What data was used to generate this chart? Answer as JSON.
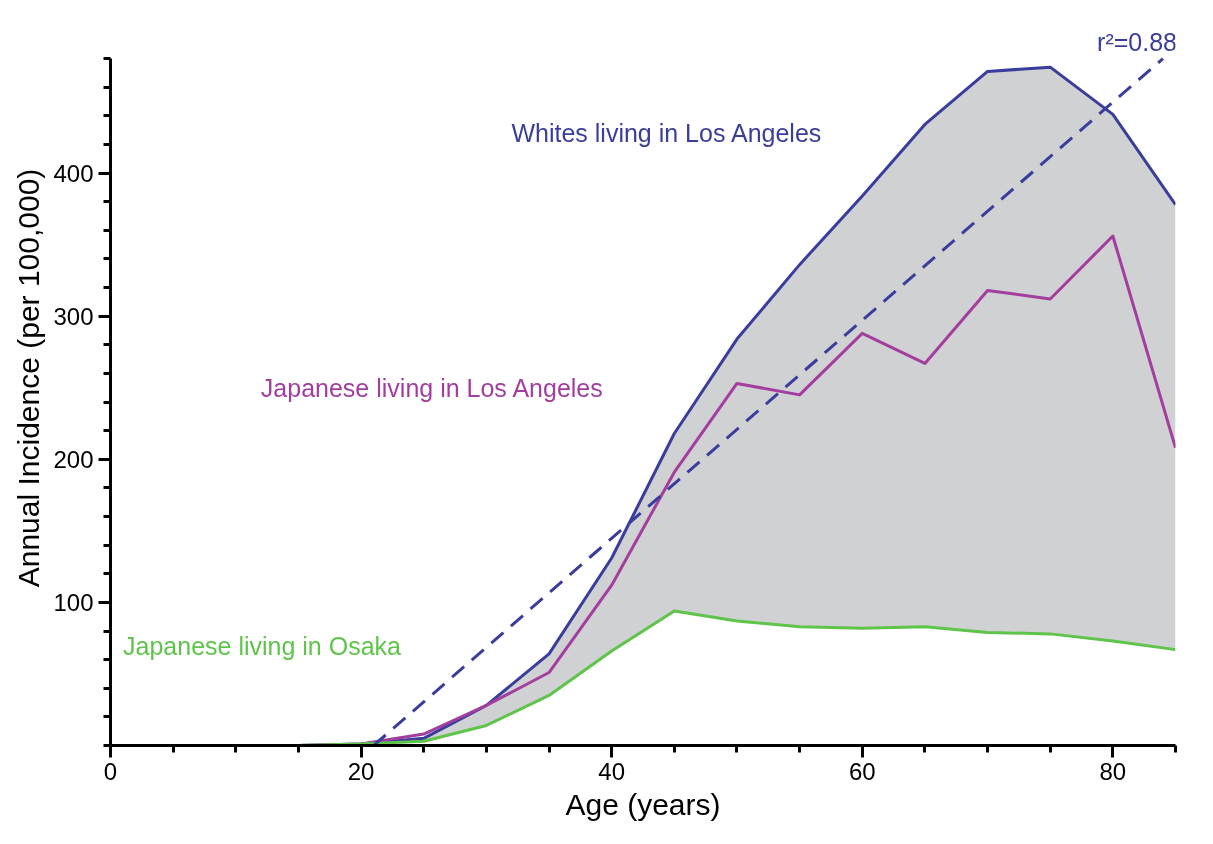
{
  "chart_data": {
    "type": "line",
    "xlabel": "Age (years)",
    "ylabel": "Annual Incidence (per 100,000)",
    "x": [
      15,
      20,
      25,
      30,
      35,
      40,
      45,
      50,
      55,
      60,
      65,
      70,
      75,
      80,
      85
    ],
    "series": [
      {
        "name": "Whites living in Los Angeles",
        "color": "#3b3d9c",
        "values": [
          0,
          1,
          5,
          28,
          64,
          131,
          218,
          284,
          336,
          384,
          434,
          471,
          474,
          441,
          378
        ]
      },
      {
        "name": "Japanese living in Los Angeles",
        "color": "#a33e9f",
        "values": [
          0,
          1,
          8,
          28,
          51,
          112,
          191,
          253,
          245,
          288,
          267,
          318,
          312,
          356,
          208
        ],
        "lower": [
          0,
          1,
          3,
          14,
          35,
          66,
          94,
          87,
          83,
          82,
          83,
          79,
          78,
          73,
          67
        ],
        "upper": [
          0,
          1,
          5,
          28,
          64,
          131,
          218,
          284,
          336,
          384,
          434,
          471,
          474,
          441,
          378
        ]
      },
      {
        "name": "Japanese living in Osaka",
        "color": "#5ec44a",
        "values": [
          0,
          1,
          3,
          14,
          35,
          66,
          94,
          87,
          83,
          82,
          83,
          79,
          78,
          73,
          67
        ]
      },
      {
        "type": "line",
        "x": [
          21,
          84
        ],
        "color": "#3b3d9c",
        "values": [
          0,
          480
        ],
        "line_style": "dashed"
      }
    ],
    "annotations": [
      {
        "text": "r²=0.88",
        "x": 84,
        "y": 480
      }
    ],
    "xlim": [
      0,
      85
    ],
    "ylim": [
      0,
      480
    ],
    "xticks": [
      0,
      {
        "value": 5,
        "label": null
      },
      {
        "value": 10,
        "label": null
      },
      {
        "value": 15,
        "label": null
      },
      20,
      {
        "value": 25,
        "label": null
      },
      {
        "value": 30,
        "label": null
      },
      {
        "value": 35,
        "label": null
      },
      40,
      {
        "value": 45,
        "label": null
      },
      {
        "value": 50,
        "label": null
      },
      {
        "value": 55,
        "label": null
      },
      60,
      {
        "value": 65,
        "label": null
      },
      {
        "value": 70,
        "label": null
      },
      {
        "value": 75,
        "label": null
      },
      80,
      {
        "value": 85,
        "label": null
      }
    ],
    "yticks": [
      {
        "value": 0,
        "label": null
      },
      {
        "value": 20,
        "label": null
      },
      {
        "value": 40,
        "label": null
      },
      {
        "value": 60,
        "label": null
      },
      {
        "value": 80,
        "label": null
      },
      100,
      {
        "value": 120,
        "label": null
      },
      {
        "value": 140,
        "label": null
      },
      {
        "value": 160,
        "label": null
      },
      {
        "value": 180,
        "label": null
      },
      200,
      {
        "value": 220,
        "label": null
      },
      {
        "value": 240,
        "label": null
      },
      {
        "value": 260,
        "label": null
      },
      {
        "value": 280,
        "label": null
      },
      300,
      {
        "value": 320,
        "label": null
      },
      {
        "value": 340,
        "label": null
      },
      {
        "value": 360,
        "label": null
      },
      {
        "value": 380,
        "label": null
      },
      400,
      {
        "value": 420,
        "label": null
      },
      {
        "value": 440,
        "label": null
      },
      {
        "value": 460,
        "label": null
      },
      {
        "value": 480,
        "label": null
      }
    ],
    "grid": false,
    "marker": "none",
    "line_style": "solid"
  }
}
